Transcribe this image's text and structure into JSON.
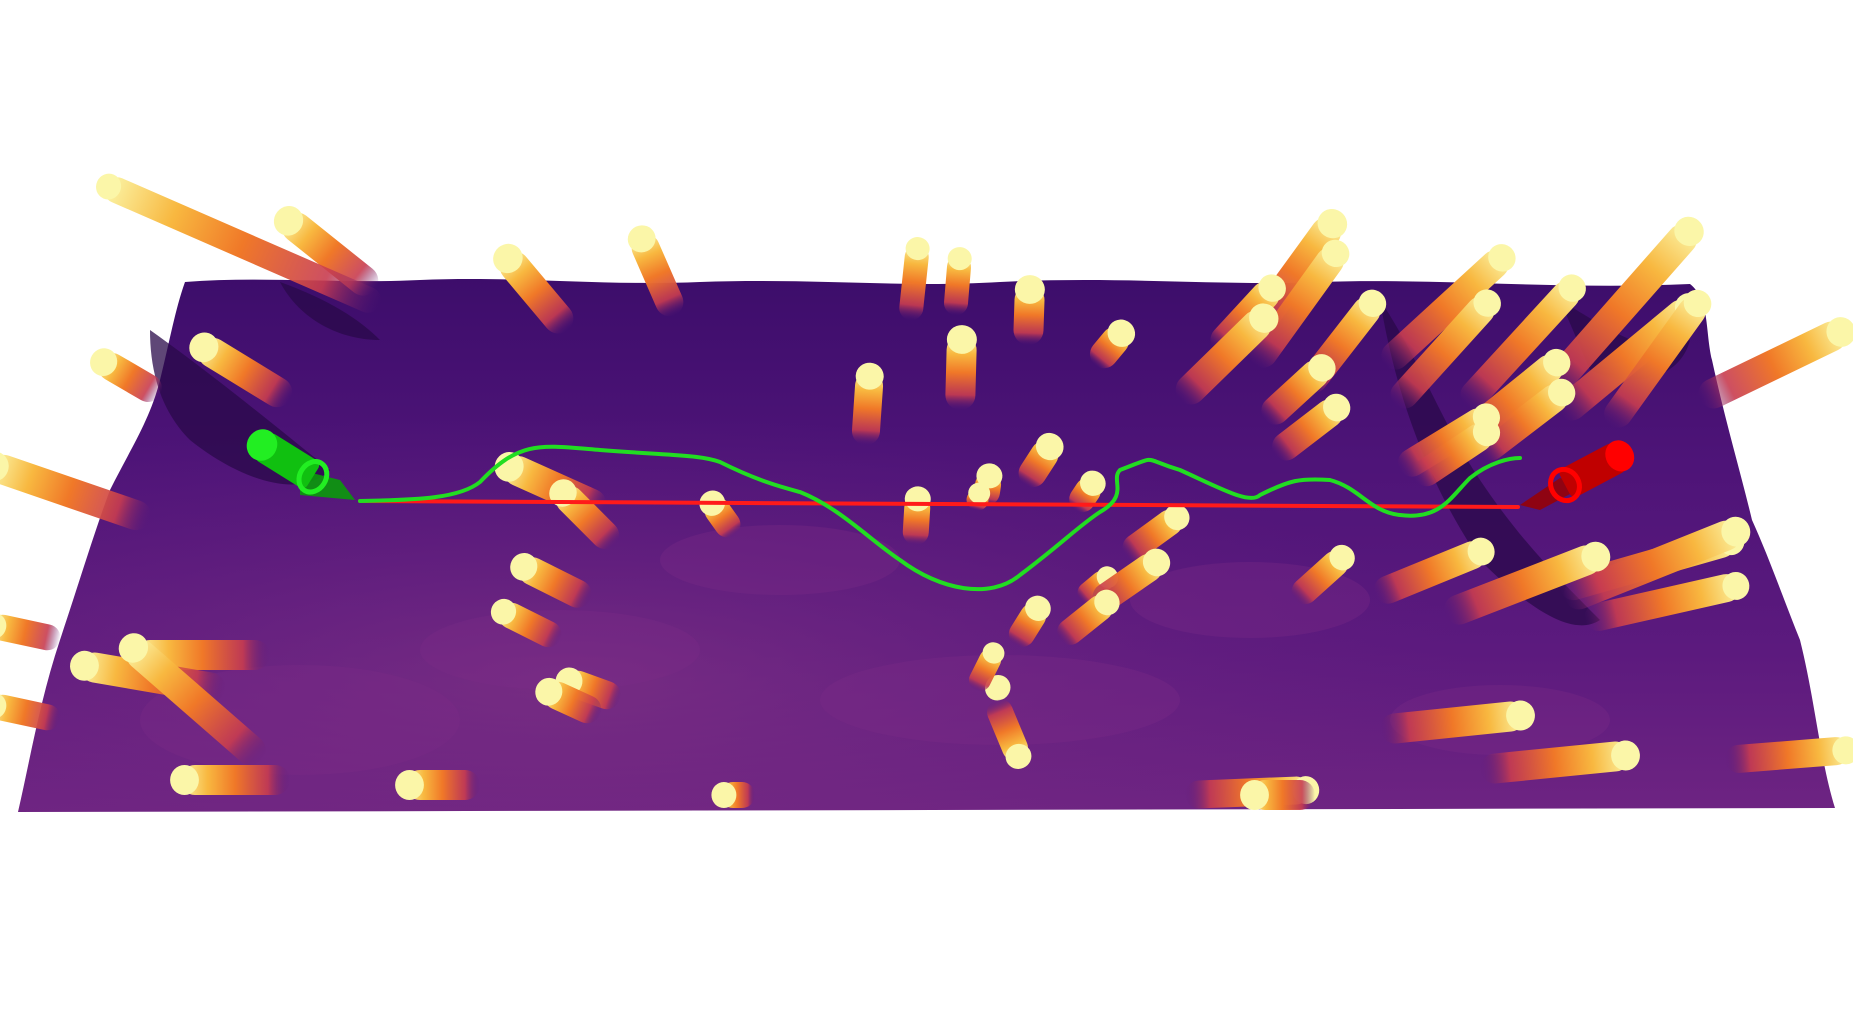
{
  "scene": {
    "background": "#ffffff",
    "colormap": "inferno",
    "terrain_colors": [
      "#2a0a4a",
      "#3d0d6b",
      "#4e1478",
      "#5c1a7e",
      "#6e2482"
    ],
    "obstacle_gradient": [
      "#5a1a78",
      "#c83c50",
      "#f07828",
      "#f8b840",
      "#fbf6a8"
    ],
    "start_marker": {
      "color": "#22ee22",
      "icon": "green-cylinder-start"
    },
    "goal_marker": {
      "color": "#ff0000",
      "icon": "red-cylinder-goal"
    },
    "paths": [
      {
        "id": "straight-path",
        "color": "#ff1a1a",
        "style": "straight"
      },
      {
        "id": "planned-path",
        "color": "#22dd22",
        "style": "wavy"
      }
    ]
  }
}
